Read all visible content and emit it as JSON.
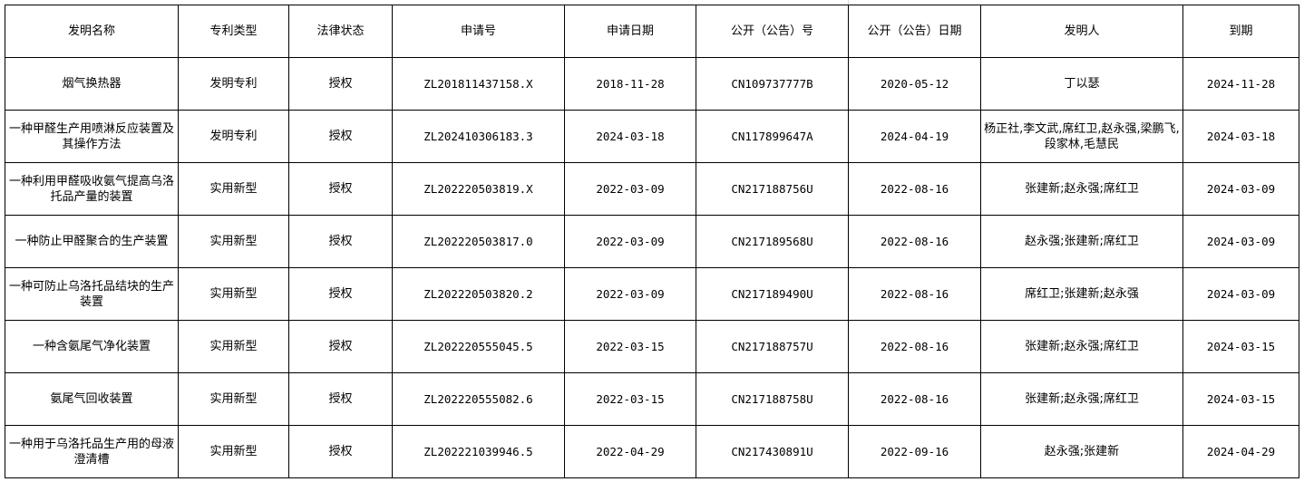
{
  "columns": [
    "发明名称",
    "专利类型",
    "法律状态",
    "申请号",
    "申请日期",
    "公开（公告）号",
    "公开（公告）日期",
    "发明人",
    "到期"
  ],
  "rows": [
    [
      "烟气换热器",
      "发明专利",
      "授权",
      "ZL201811437158.X",
      "2018-11-28",
      "CN109737777B",
      "2020-05-12",
      "丁以瑟",
      "2024-11-28"
    ],
    [
      "一种甲醛生产用喷淋反应装置及其操作方法",
      "发明专利",
      "授权",
      "ZL202410306183.3",
      "2024-03-18",
      "CN117899647A",
      "2024-04-19",
      "杨正社,李文武,席红卫,赵永强,梁鹏飞,段家林,毛慧民",
      "2024-03-18"
    ],
    [
      "一种利用甲醛吸收氨气提高乌洛托品产量的装置",
      "实用新型",
      "授权",
      "ZL202220503819.X",
      "2022-03-09",
      "CN217188756U",
      "2022-08-16",
      "张建新;赵永强;席红卫",
      "2024-03-09"
    ],
    [
      "一种防止甲醛聚合的生产装置",
      "实用新型",
      "授权",
      "ZL202220503817.0",
      "2022-03-09",
      "CN217189568U",
      "2022-08-16",
      "赵永强;张建新;席红卫",
      "2024-03-09"
    ],
    [
      "一种可防止乌洛托品结块的生产装置",
      "实用新型",
      "授权",
      "ZL202220503820.2",
      "2022-03-09",
      "CN217189490U",
      "2022-08-16",
      "席红卫;张建新;赵永强",
      "2024-03-09"
    ],
    [
      "一种含氨尾气净化装置",
      "实用新型",
      "授权",
      "ZL202220555045.5",
      "2022-03-15",
      "CN217188757U",
      "2022-08-16",
      "张建新;赵永强;席红卫",
      "2024-03-15"
    ],
    [
      "氨尾气回收装置",
      "实用新型",
      "授权",
      "ZL202220555082.6",
      "2022-03-15",
      "CN217188758U",
      "2022-08-16",
      "张建新;赵永强;席红卫",
      "2024-03-15"
    ],
    [
      "一种用于乌洛托品生产用的母液澄清槽",
      "实用新型",
      "授权",
      "ZL202221039946.5",
      "2022-04-29",
      "CN217430891U",
      "2022-09-16",
      "赵永强;张建新",
      "2024-04-29"
    ]
  ]
}
